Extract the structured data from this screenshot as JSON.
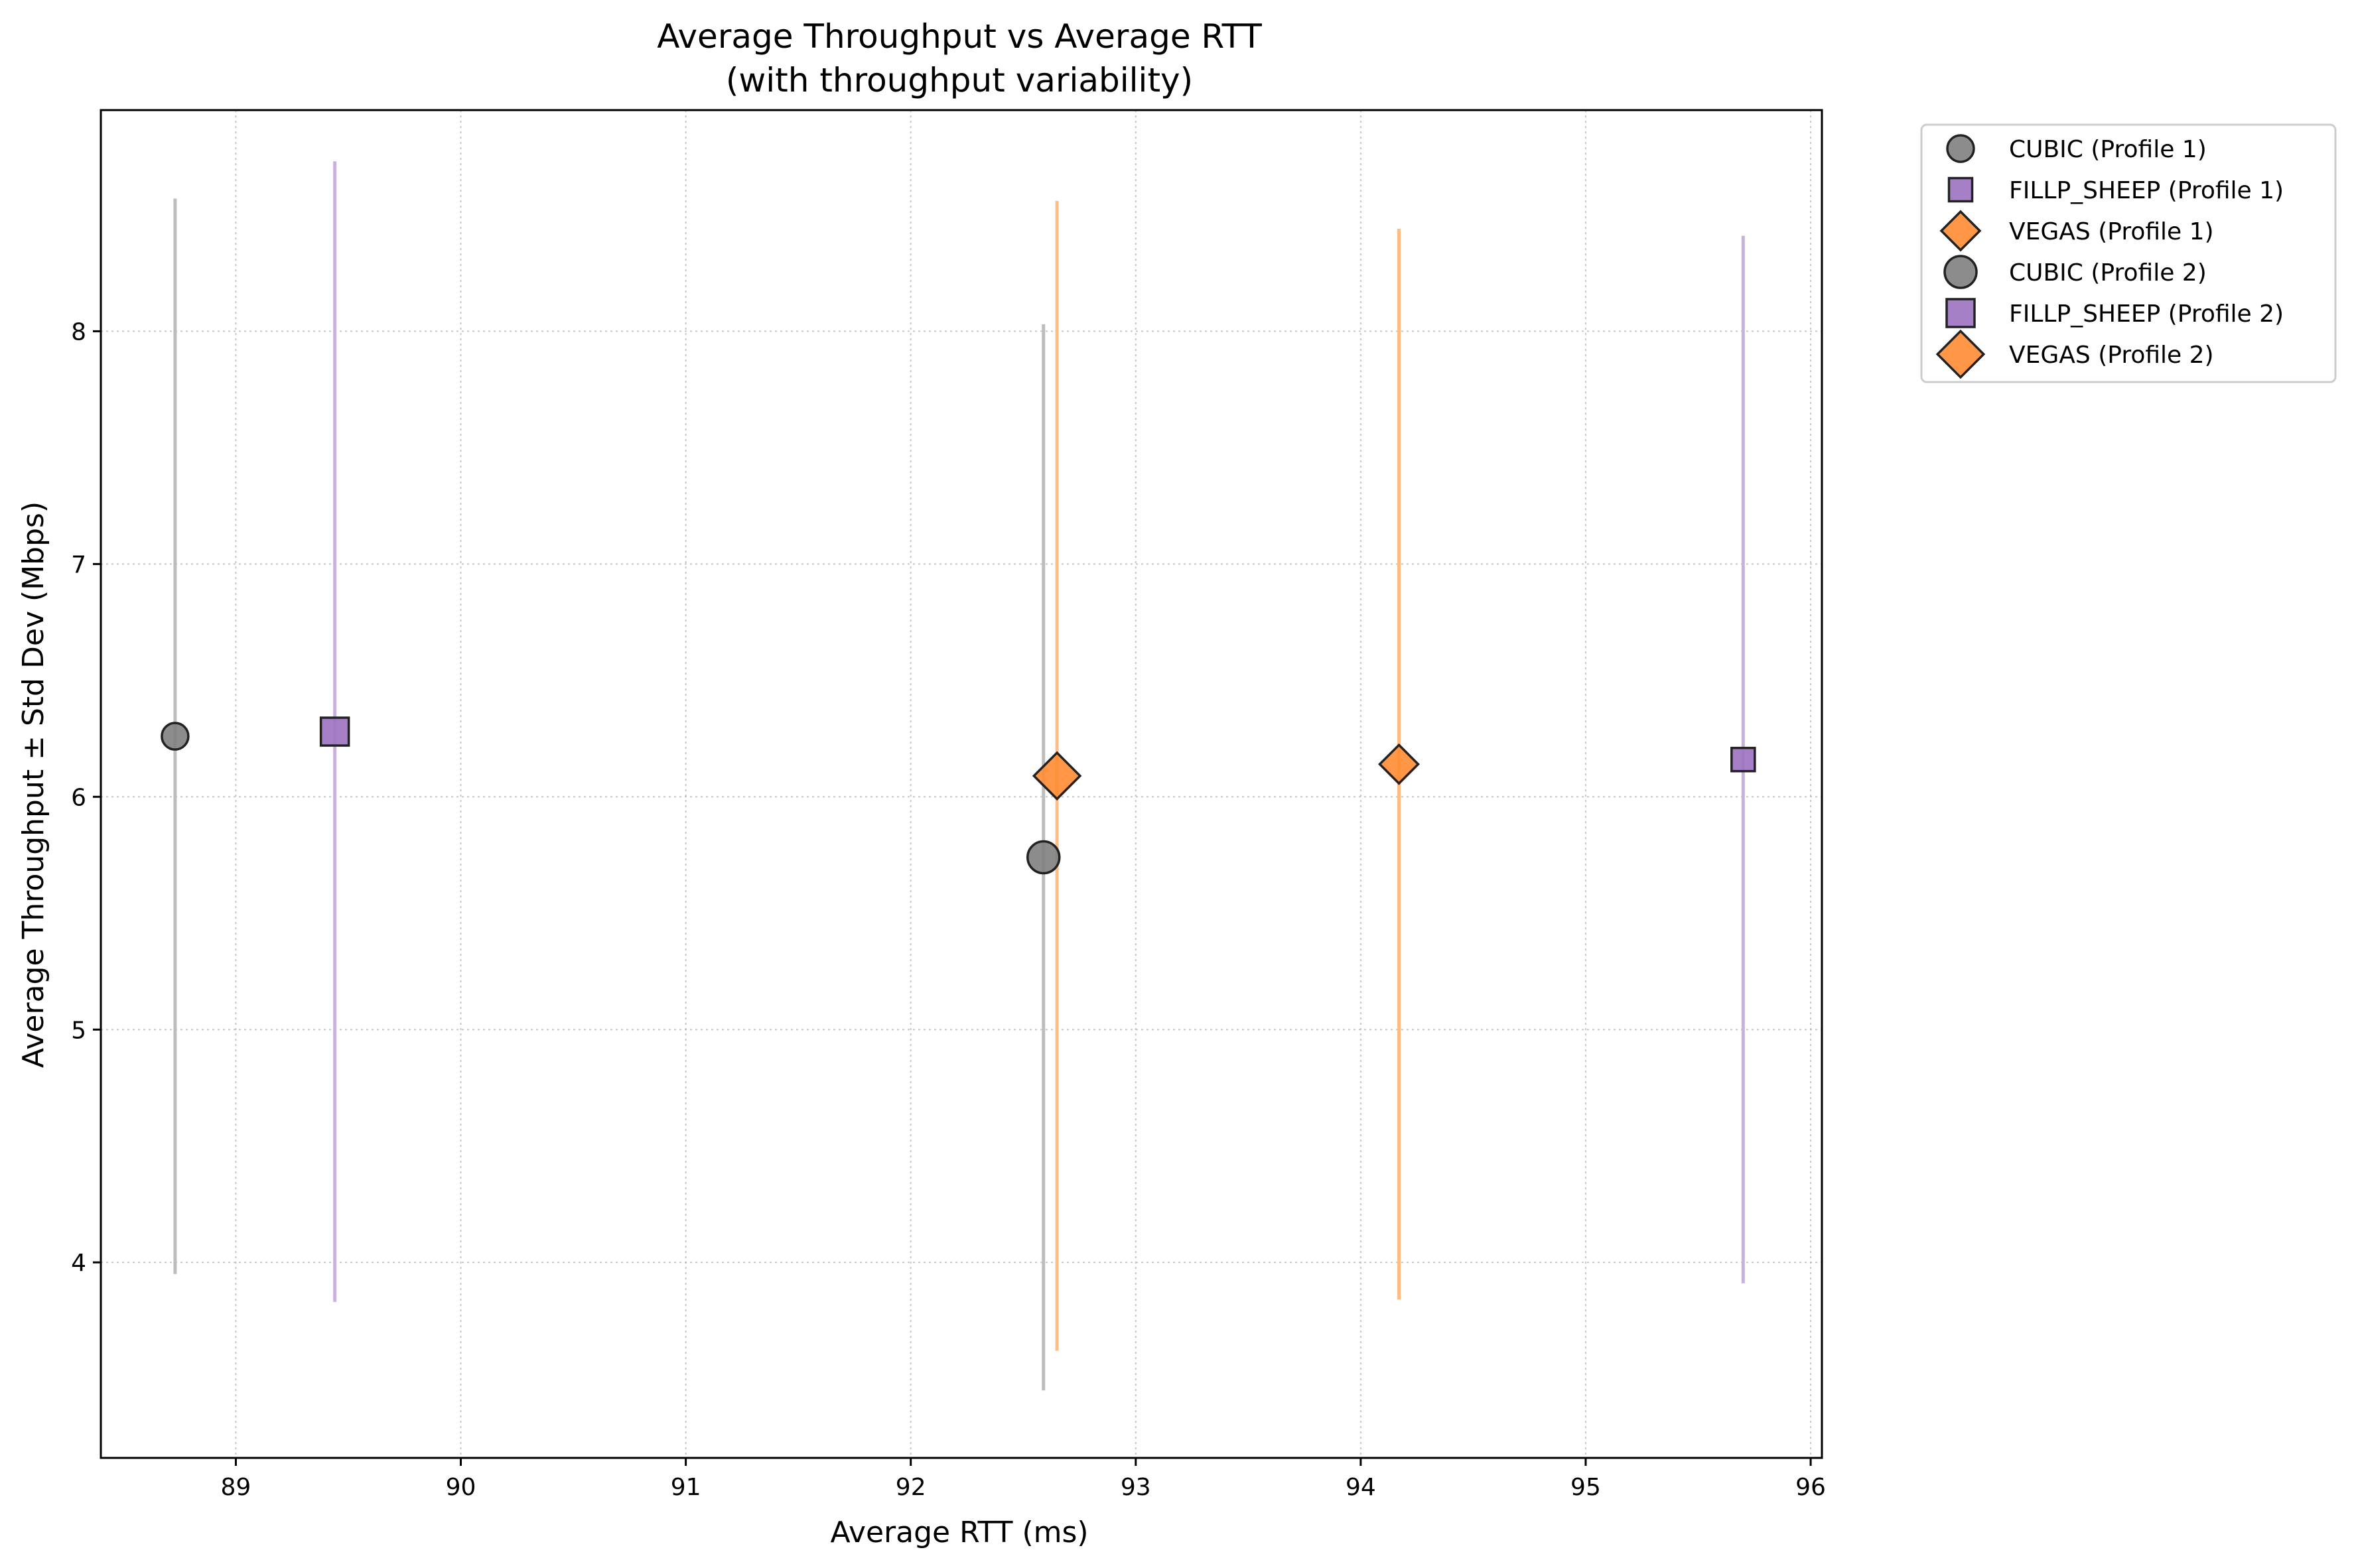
{
  "chart_data": {
    "type": "scatter",
    "title": "Average Throughput vs Average RTT",
    "subtitle": "(with throughput variability)",
    "xlabel": "Average RTT (ms)",
    "ylabel": "Average Throughput ± Std Dev (Mbps)",
    "xlim": [
      88.4,
      96.05
    ],
    "ylim": [
      3.16,
      8.95
    ],
    "xticks": [
      89,
      90,
      91,
      92,
      93,
      94,
      95,
      96
    ],
    "yticks": [
      4,
      5,
      6,
      7,
      8
    ],
    "grid": true,
    "legend_position": "outside-top-right",
    "series": [
      {
        "name": "CUBIC (Profile 1)",
        "marker": "circle",
        "size": "small",
        "color": "#808080",
        "errcolor": "#bdbdbd",
        "points": [
          {
            "x": 88.73,
            "y": 6.26,
            "yerr": 2.31
          }
        ]
      },
      {
        "name": "FILLP_SHEEP (Profile 1)",
        "marker": "square",
        "size": "small",
        "color": "#9b72c1",
        "errcolor": "#c9b1de",
        "points": [
          {
            "x": 95.7,
            "y": 6.16,
            "yerr": 2.25
          }
        ]
      },
      {
        "name": "VEGAS (Profile 1)",
        "marker": "diamond",
        "size": "small",
        "color": "#ff8c33",
        "errcolor": "#ffbd85",
        "points": [
          {
            "x": 94.17,
            "y": 6.14,
            "yerr": 2.3
          }
        ]
      },
      {
        "name": "CUBIC (Profile 2)",
        "marker": "circle",
        "size": "large",
        "color": "#808080",
        "errcolor": "#bdbdbd",
        "points": [
          {
            "x": 92.59,
            "y": 5.74,
            "yerr": 2.29
          }
        ]
      },
      {
        "name": "FILLP_SHEEP (Profile 2)",
        "marker": "square",
        "size": "large",
        "color": "#9b72c1",
        "errcolor": "#c9b1de",
        "points": [
          {
            "x": 89.44,
            "y": 6.28,
            "yerr": 2.45
          }
        ]
      },
      {
        "name": "VEGAS (Profile 2)",
        "marker": "diamond",
        "size": "large",
        "color": "#ff8c33",
        "errcolor": "#ffbd85",
        "points": [
          {
            "x": 92.65,
            "y": 6.09,
            "yerr": 2.47
          }
        ]
      }
    ]
  }
}
